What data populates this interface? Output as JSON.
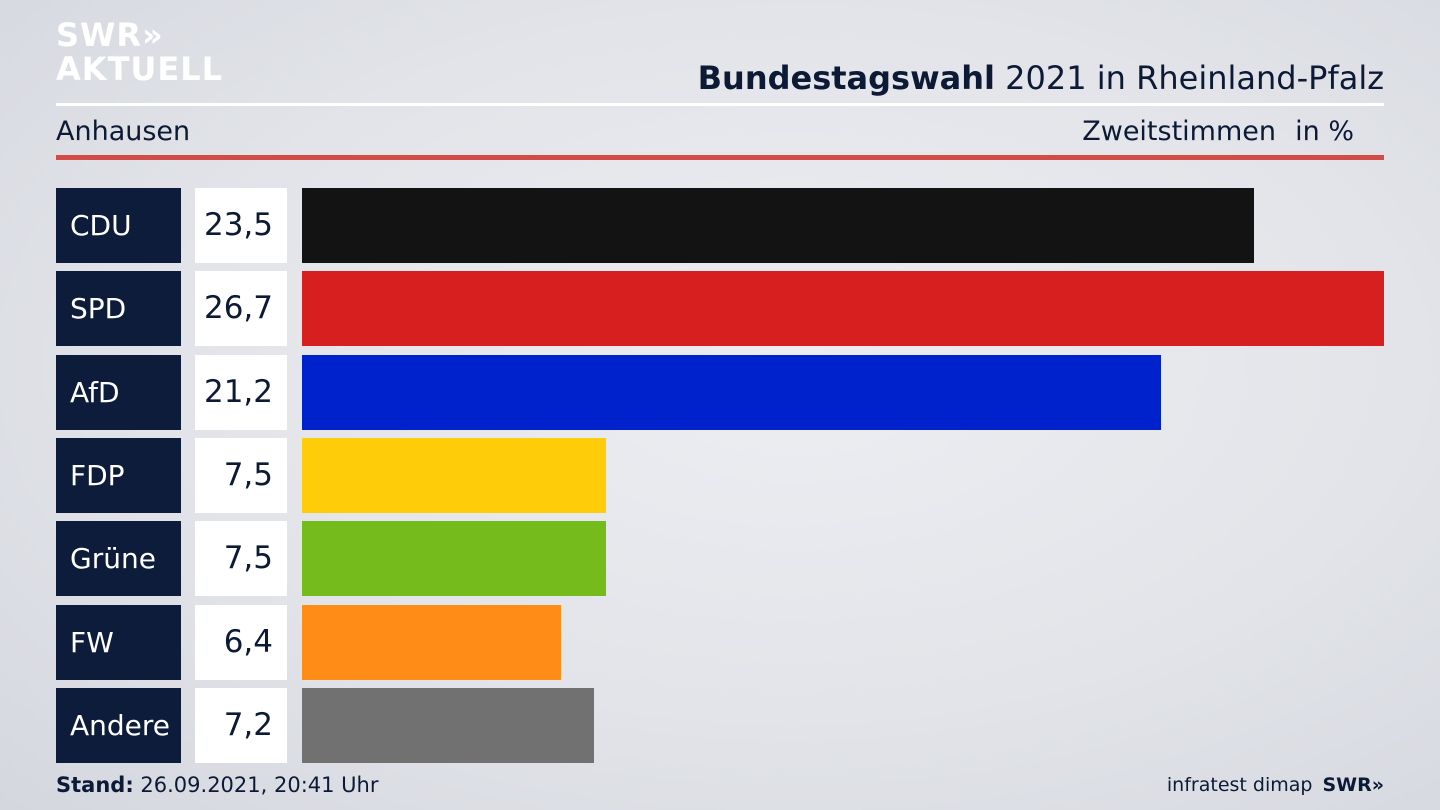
{
  "logo": {
    "line1": "SWR»",
    "line2": "AKTUELL"
  },
  "title": {
    "bold": "Bundestagswahl",
    "rest": " 2021 in Rheinland-Pfalz"
  },
  "subheader": {
    "region": "Anhausen",
    "metric": "Zweitstimmen",
    "unit": "in %"
  },
  "colors": {
    "accent_rule": "#d24b46",
    "label_bg": "#0d1c3a"
  },
  "chart_data": {
    "type": "bar",
    "orientation": "horizontal",
    "categories": [
      "CDU",
      "SPD",
      "AfD",
      "FDP",
      "Grüne",
      "FW",
      "Andere"
    ],
    "values": [
      23.5,
      26.7,
      21.2,
      7.5,
      7.5,
      6.4,
      7.2
    ],
    "value_labels": [
      "23,5",
      "26,7",
      "21,2",
      "7,5",
      "7,5",
      "6,4",
      "7,2"
    ],
    "colors": [
      "#131313",
      "#d81f1f",
      "#0022cc",
      "#ffcc0a",
      "#76bb1c",
      "#ff8c16",
      "#717171"
    ],
    "title": "Bundestagswahl 2021 in Rheinland-Pfalz",
    "xlabel": "",
    "ylabel": "",
    "grid": false,
    "legend": "none"
  },
  "footer": {
    "stand_label": "Stand:",
    "stand_value": " 26.09.2021, 20:41 Uhr",
    "source": "infratest dimap",
    "brand": "SWR»"
  }
}
